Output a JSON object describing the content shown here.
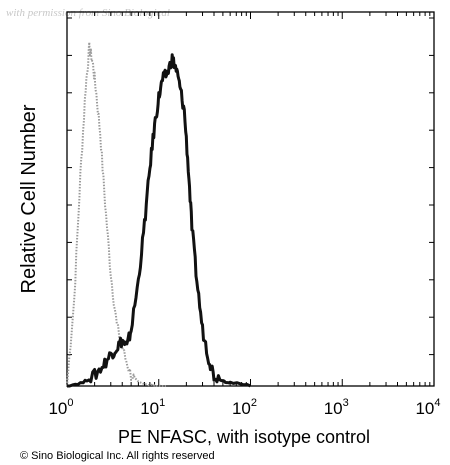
{
  "watermark": "with permission from Sino Biological",
  "copyright": "© Sino Biological Inc. All rights reserved",
  "chart_data": {
    "type": "line",
    "xlabel": "PE NFASC, with isotype control",
    "ylabel": "Relative Cell Number",
    "x_scale": "log",
    "xlim": [
      1,
      10000
    ],
    "ylim": [
      0,
      1
    ],
    "x_ticks": [
      {
        "value": 1,
        "base": "10",
        "exp": "0"
      },
      {
        "value": 10,
        "base": "10",
        "exp": "1"
      },
      {
        "value": 100,
        "base": "10",
        "exp": "2"
      },
      {
        "value": 1000,
        "base": "10",
        "exp": "3"
      },
      {
        "value": 10000,
        "base": "10",
        "exp": "4"
      }
    ],
    "grid": false,
    "series": [
      {
        "color": "#9a9a9a",
        "style": "dotted",
        "x": [
          1.0,
          1.2,
          1.4,
          1.6,
          1.75,
          1.9,
          2.05,
          2.3,
          2.6,
          3.0,
          3.5,
          4.2,
          5.0,
          6.0,
          7.5,
          9.0,
          12.0
        ],
        "y": [
          0.0,
          0.25,
          0.6,
          0.85,
          0.96,
          0.92,
          0.85,
          0.72,
          0.52,
          0.32,
          0.17,
          0.09,
          0.03,
          0.01,
          0.005,
          0.0,
          0.0
        ]
      },
      {
        "color": "#111111",
        "style": "solid",
        "x": [
          1.0,
          1.5,
          2.0,
          2.5,
          3.0,
          3.5,
          4.0,
          4.5,
          5.0,
          6.0,
          7.0,
          8.0,
          9.0,
          10.0,
          11.0,
          12.5,
          14.0,
          15.5,
          17.0,
          19.0,
          21.0,
          23.0,
          26.0,
          30.0,
          35.0,
          40.0,
          50.0,
          60.0,
          100.0
        ],
        "y": [
          0.0,
          0.01,
          0.03,
          0.06,
          0.09,
          0.11,
          0.13,
          0.11,
          0.16,
          0.3,
          0.46,
          0.62,
          0.74,
          0.82,
          0.87,
          0.89,
          0.93,
          0.9,
          0.85,
          0.78,
          0.62,
          0.45,
          0.3,
          0.16,
          0.08,
          0.03,
          0.015,
          0.01,
          0.0
        ]
      }
    ]
  }
}
